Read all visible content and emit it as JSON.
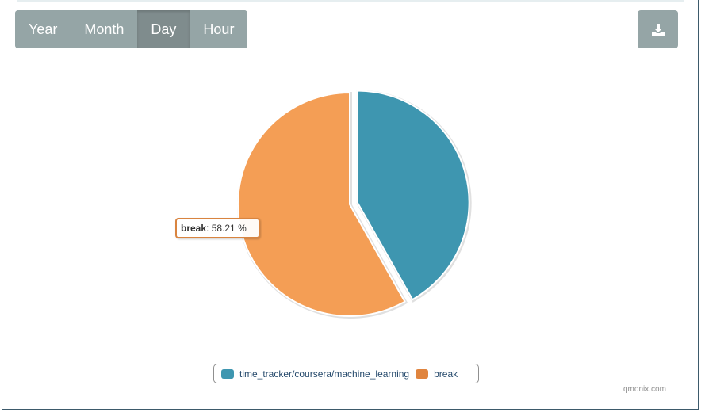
{
  "range_buttons": [
    {
      "label": "Year",
      "active": false
    },
    {
      "label": "Month",
      "active": false
    },
    {
      "label": "Day",
      "active": true
    },
    {
      "label": "Hour",
      "active": false
    }
  ],
  "download_button": {
    "icon": "download-icon"
  },
  "chart_data": {
    "type": "pie",
    "title": "",
    "series": [
      {
        "name": "time_tracker/coursera/machine_learning",
        "value": 41.79,
        "color": "#3e96b0"
      },
      {
        "name": "break",
        "value": 58.21,
        "color": "#f49e55"
      }
    ],
    "legend_position": "bottom",
    "sliced": "time_tracker/coursera/machine_learning"
  },
  "tooltip": {
    "series_name": "break",
    "separator": ": ",
    "value_text": "58.21 %"
  },
  "legend": {
    "items": [
      {
        "label": "time_tracker/coursera/machine_learning",
        "color": "#3e96b0"
      },
      {
        "label": "break",
        "color": "#e0843e"
      }
    ]
  },
  "credits": "qmonix.com"
}
